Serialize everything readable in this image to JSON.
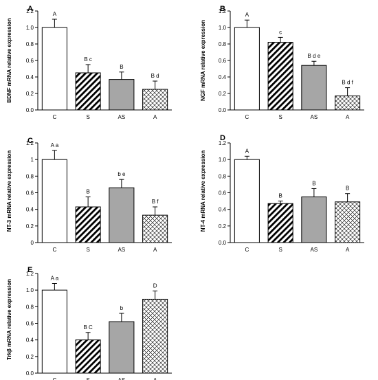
{
  "chart_data": [
    {
      "type": "bar",
      "panel": "A",
      "categories": [
        "C",
        "S",
        "AS",
        "A"
      ],
      "values": [
        1.0,
        0.45,
        0.37,
        0.25
      ],
      "errors": [
        0.1,
        0.1,
        0.09,
        0.1
      ],
      "significance": [
        "A",
        "B c",
        "B",
        "B d"
      ],
      "ylabel": "BDNF mRNA relative expression",
      "yticks": [
        "0.0",
        "0.2",
        "0.4",
        "0.6",
        "0.8",
        "1.0",
        "1.2"
      ],
      "ylim": [
        0,
        1.2
      ],
      "bar_styles": [
        "white",
        "diagonal-hatch",
        "gray",
        "crosshatch"
      ]
    },
    {
      "type": "bar",
      "panel": "B",
      "categories": [
        "C",
        "S",
        "AS",
        "A"
      ],
      "values": [
        1.0,
        0.82,
        0.54,
        0.17
      ],
      "errors": [
        0.09,
        0.06,
        0.05,
        0.1
      ],
      "significance": [
        "A",
        "c",
        "B d e",
        "B d f"
      ],
      "ylabel": "NGF mRNA relative expression",
      "yticks": [
        "0.0",
        "0.2",
        "0.4",
        "0.6",
        "0.8",
        "1.0",
        "1.2"
      ],
      "ylim": [
        0,
        1.2
      ],
      "bar_styles": [
        "white",
        "diagonal-hatch",
        "gray",
        "crosshatch"
      ]
    },
    {
      "type": "bar",
      "panel": "C",
      "categories": [
        "C",
        "S",
        "AS",
        "A"
      ],
      "values": [
        1.0,
        0.43,
        0.66,
        0.33
      ],
      "errors": [
        0.11,
        0.12,
        0.1,
        0.1
      ],
      "significance": [
        "A a",
        "B",
        "b e",
        "B f"
      ],
      "ylabel": "NT-3 mRNA relative expression",
      "yticks": [
        "0",
        "0.2",
        "0.4",
        "0.6",
        "0.8",
        "1",
        "1.2"
      ],
      "ylim": [
        0,
        1.2
      ],
      "bar_styles": [
        "white",
        "diagonal-hatch",
        "gray",
        "crosshatch"
      ]
    },
    {
      "type": "bar",
      "panel": "D",
      "categories": [
        "C",
        "S",
        "AS",
        "A"
      ],
      "values": [
        1.0,
        0.47,
        0.55,
        0.49
      ],
      "errors": [
        0.04,
        0.03,
        0.1,
        0.1
      ],
      "significance": [
        "A",
        "B",
        "B",
        "B"
      ],
      "ylabel": "NT-4 mRNA relative expression",
      "yticks": [
        "0.0",
        "0.2",
        "0.4",
        "0.6",
        "0.8",
        "1.0",
        "1.2"
      ],
      "ylim": [
        0,
        1.2
      ],
      "bar_styles": [
        "white",
        "diagonal-hatch",
        "gray",
        "crosshatch"
      ]
    },
    {
      "type": "bar",
      "panel": "E",
      "categories": [
        "C",
        "S",
        "AS",
        "A"
      ],
      "values": [
        1.0,
        0.4,
        0.62,
        0.89
      ],
      "errors": [
        0.08,
        0.09,
        0.1,
        0.1
      ],
      "significance": [
        "A a",
        "B C",
        "b",
        "D"
      ],
      "ylabel": "Trkβ mRNA relative expression",
      "yticks": [
        "0.0",
        "0.2",
        "0.4",
        "0.6",
        "0.8",
        "1.0",
        "1.2"
      ],
      "ylim": [
        0,
        1.2
      ],
      "bar_styles": [
        "white",
        "diagonal-hatch",
        "gray",
        "crosshatch"
      ]
    }
  ],
  "colors": {
    "bar_edge": "#000000",
    "gray_bar": "#a6a6a6",
    "hatch_line": "#000000",
    "background": "#ffffff"
  }
}
